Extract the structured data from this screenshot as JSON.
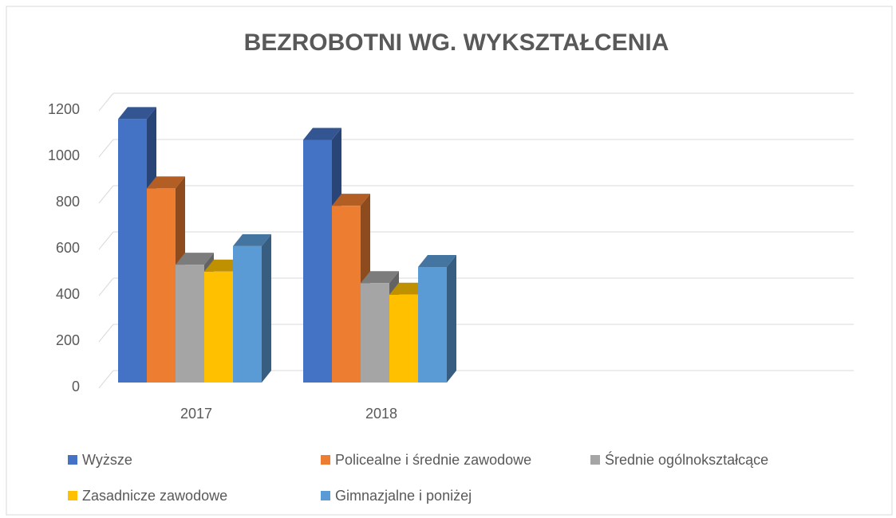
{
  "chart_data": {
    "type": "bar3d",
    "title": "BEZROBOTNI WG. WYKSZTAŁCENIA",
    "categories": [
      "2017",
      "2018",
      null,
      null
    ],
    "series": [
      {
        "name": "Wyższe",
        "color": "#4472c4",
        "values": [
          1140,
          1050,
          null,
          null
        ]
      },
      {
        "name": "Policealne i średnie zawodowe",
        "color": "#ed7d31",
        "values": [
          840,
          765,
          null,
          null
        ]
      },
      {
        "name": "Średnie ogólnokształcące",
        "color": "#a5a5a5",
        "values": [
          510,
          430,
          null,
          null
        ]
      },
      {
        "name": "Zasadnicze zawodowe",
        "color": "#ffc000",
        "values": [
          480,
          380,
          null,
          null
        ]
      },
      {
        "name": "Gimnazjalne i poniżej",
        "color": "#5b9bd5",
        "values": [
          590,
          500,
          null,
          null
        ]
      }
    ],
    "ylim": [
      0,
      1200
    ],
    "yticks": [
      0,
      200,
      400,
      600,
      800,
      1000,
      1200
    ],
    "grid": true,
    "legend": "bottom"
  }
}
